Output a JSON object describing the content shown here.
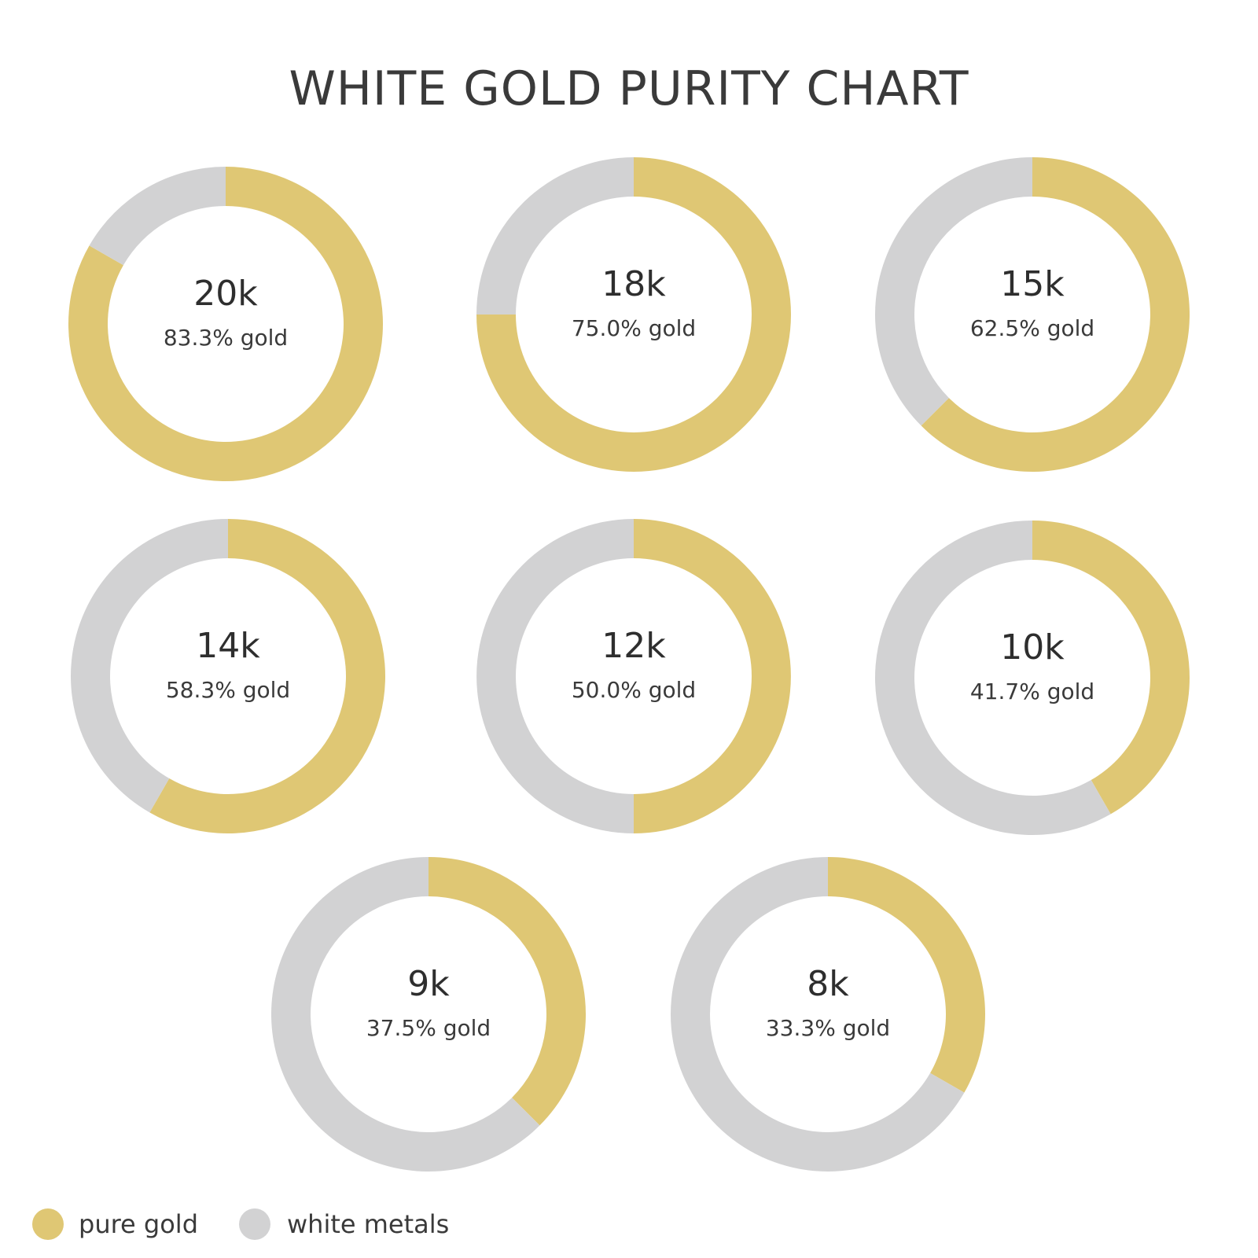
{
  "chart_data": {
    "type": "pie",
    "title": "WHITE GOLD PURITY CHART",
    "colors": {
      "gold": "#dfc774",
      "white": "#d2d2d3"
    },
    "legend": {
      "placement": "bottom-left",
      "items": [
        {
          "label": "pure gold",
          "color_key": "gold"
        },
        {
          "label": "white metals",
          "color_key": "white"
        }
      ]
    },
    "items": [
      {
        "karat": "20k",
        "percent_label": "83.3% gold",
        "gold_percent": 83.3
      },
      {
        "karat": "18k",
        "percent_label": "75.0% gold",
        "gold_percent": 75.0
      },
      {
        "karat": "15k",
        "percent_label": "62.5% gold",
        "gold_percent": 62.5
      },
      {
        "karat": "14k",
        "percent_label": "58.3% gold",
        "gold_percent": 58.3
      },
      {
        "karat": "12k",
        "percent_label": "50.0% gold",
        "gold_percent": 50.0
      },
      {
        "karat": "10k",
        "percent_label": "41.7% gold",
        "gold_percent": 41.7
      },
      {
        "karat": "9k",
        "percent_label": "37.5% gold",
        "gold_percent": 37.5
      },
      {
        "karat": "8k",
        "percent_label": "33.3% gold",
        "gold_percent": 33.3
      }
    ]
  }
}
